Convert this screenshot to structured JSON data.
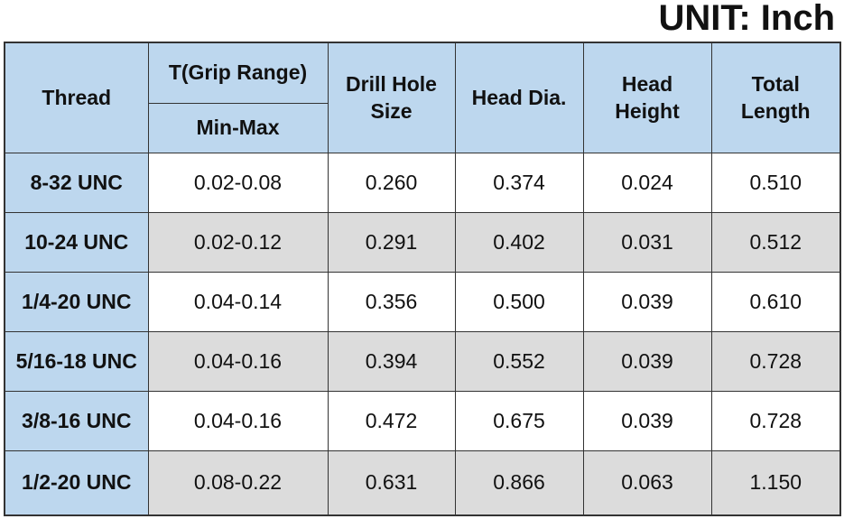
{
  "title": "UNIT: Inch",
  "table": {
    "header": {
      "thread": "Thread",
      "grip": "T(Grip Range)",
      "grip_sub": "Min-Max",
      "columns": [
        "Drill Hole Size",
        "Head Dia.",
        "Head Height",
        "Total Length"
      ]
    },
    "rows": [
      [
        "8-32 UNC",
        "0.02-0.08",
        "0.260",
        "0.374",
        "0.024",
        "0.510"
      ],
      [
        "10-24 UNC",
        "0.02-0.12",
        "0.291",
        "0.402",
        "0.031",
        "0.512"
      ],
      [
        "1/4-20 UNC",
        "0.04-0.14",
        "0.356",
        "0.500",
        "0.039",
        "0.610"
      ],
      [
        "5/16-18 UNC",
        "0.04-0.16",
        "0.394",
        "0.552",
        "0.039",
        "0.728"
      ],
      [
        "3/8-16 UNC",
        "0.04-0.16",
        "0.472",
        "0.675",
        "0.039",
        "0.728"
      ],
      [
        "1/2-20 UNC",
        "0.08-0.22",
        "0.631",
        "0.866",
        "0.063",
        "1.150"
      ]
    ]
  }
}
